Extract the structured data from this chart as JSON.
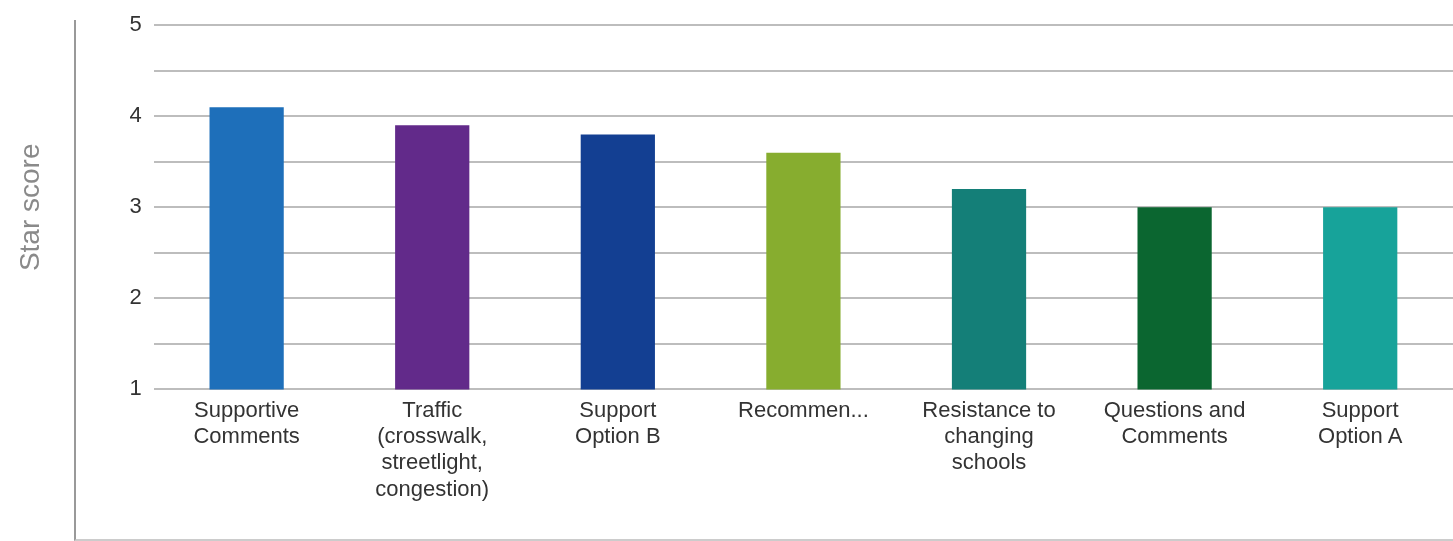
{
  "chart_data": {
    "type": "bar",
    "ylabel": "Star score",
    "categories": [
      "Supportive Comments",
      "Traffic (crosswalk, streetlight, congestion)",
      "Support Option B",
      "Recommen...",
      "Resistance to changing schools",
      "Questions and Comments",
      "Support Option A"
    ],
    "values": [
      4.1,
      3.9,
      3.8,
      3.6,
      3.2,
      3.0,
      3.0
    ],
    "colors": [
      "#1e6fba",
      "#622a8a",
      "#133f92",
      "#87ad2f",
      "#147f78",
      "#0b6630",
      "#17a39a"
    ],
    "ylim": [
      1,
      5
    ],
    "yticks": [
      1,
      {
        "value": 1.5,
        "label": null
      },
      2,
      {
        "value": 2.5,
        "label": null
      },
      3,
      {
        "value": 3.5,
        "label": null
      },
      4,
      {
        "value": 4.5,
        "label": null
      },
      5
    ],
    "grid": "y",
    "legend": false
  }
}
